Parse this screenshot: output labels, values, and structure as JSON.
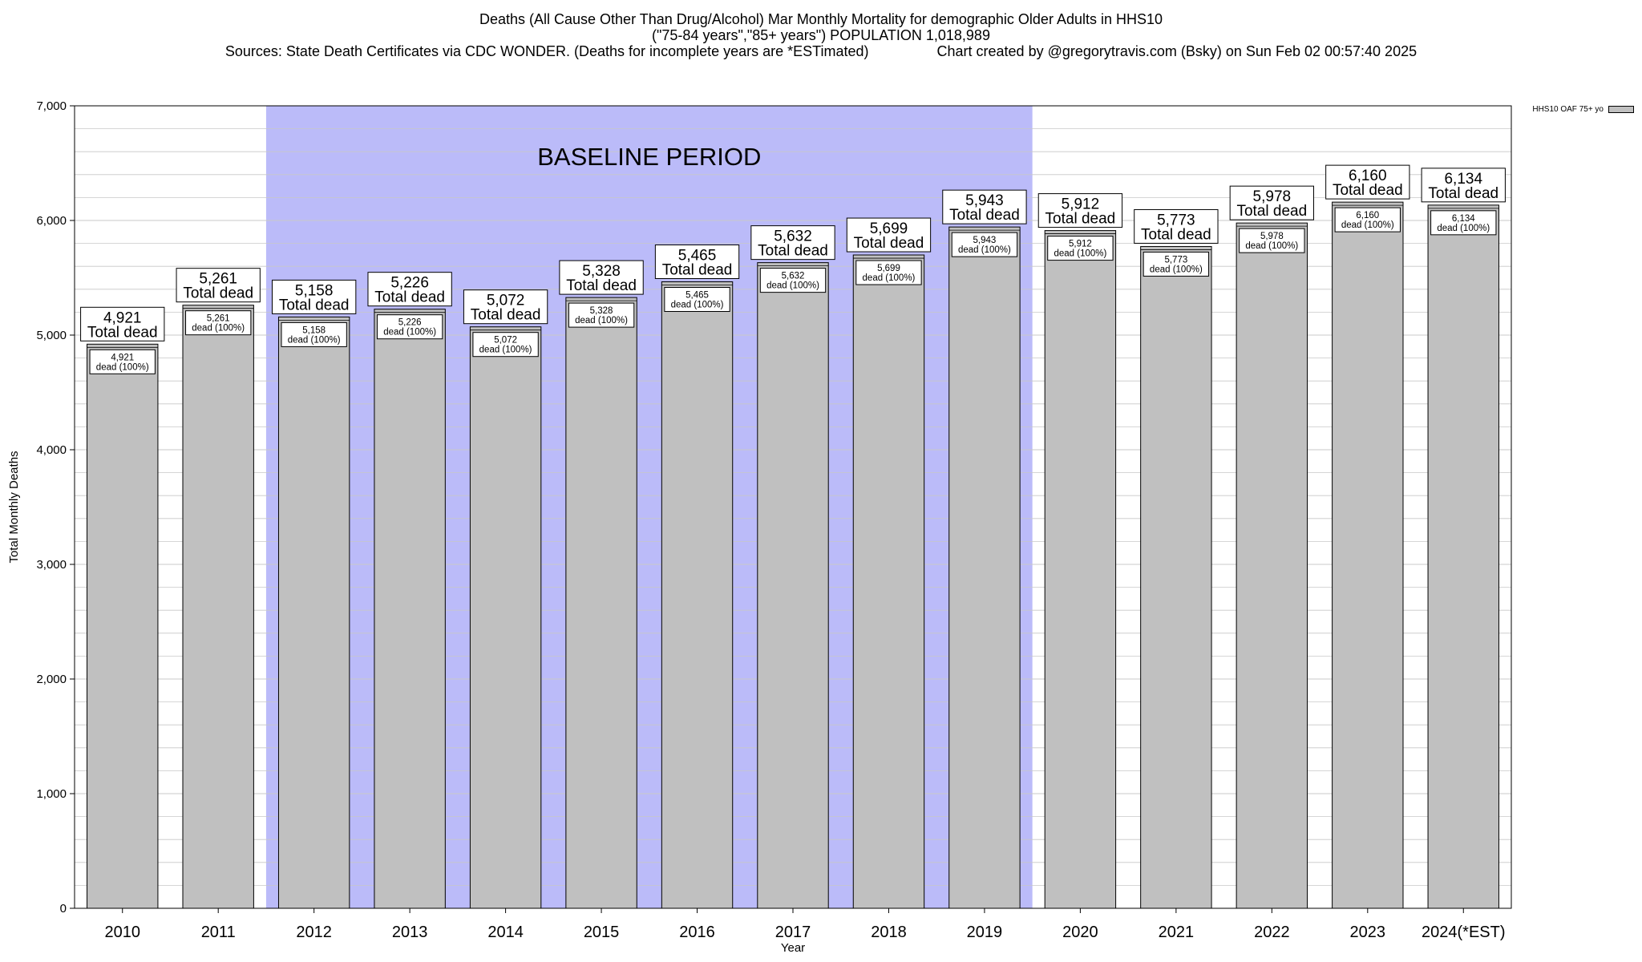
{
  "header": {
    "line1": "Deaths (All Cause Other Than Drug/Alcohol) Mar Monthly Mortality for demographic Older Adults in HHS10",
    "line2": "(\"75-84 years\",\"85+ years\") POPULATION 1,018,989",
    "line3": "Sources: State Death Certificates via CDC WONDER. (Deaths for incomplete years are *ESTimated)                 Chart created by @gregorytravis.com (Bsky) on Sun Feb 02 00:57:40 2025"
  },
  "legend": {
    "label": "HHS10 OAF 75+ yo"
  },
  "colors": {
    "bar": "#c0c0c0",
    "baseline": "#bbbbf9",
    "grid": "#c8c8c8"
  },
  "chart_data": {
    "type": "bar",
    "xlabel": "Year",
    "ylabel": "Total Monthly Deaths",
    "ylim": [
      0,
      7000
    ],
    "yticks": [
      0,
      1000,
      2000,
      3000,
      4000,
      5000,
      6000,
      7000
    ],
    "ytick_labels": [
      "0",
      "1,000",
      "2,000",
      "3,000",
      "4,000",
      "5,000",
      "6,000",
      "7,000"
    ],
    "grid": true,
    "legend_position": "top-right",
    "categories": [
      "2010",
      "2011",
      "2012",
      "2013",
      "2014",
      "2015",
      "2016",
      "2017",
      "2018",
      "2019",
      "2020",
      "2021",
      "2022",
      "2023",
      "2024(*EST)"
    ],
    "series": [
      {
        "name": "HHS10 OAF 75+ yo",
        "values": [
          4921,
          5261,
          5158,
          5226,
          5072,
          5328,
          5465,
          5632,
          5699,
          5943,
          5912,
          5773,
          5978,
          6160,
          6134
        ]
      }
    ],
    "value_labels": [
      "4,921",
      "5,261",
      "5,158",
      "5,226",
      "5,072",
      "5,328",
      "5,465",
      "5,632",
      "5,699",
      "5,943",
      "5,912",
      "5,773",
      "5,978",
      "6,160",
      "6,134"
    ],
    "top_label_suffix": "Total dead",
    "inner_label_suffix": "dead (100%)",
    "baseline_period": {
      "label": "BASELINE PERIOD",
      "start": "2012",
      "end": "2019"
    }
  }
}
